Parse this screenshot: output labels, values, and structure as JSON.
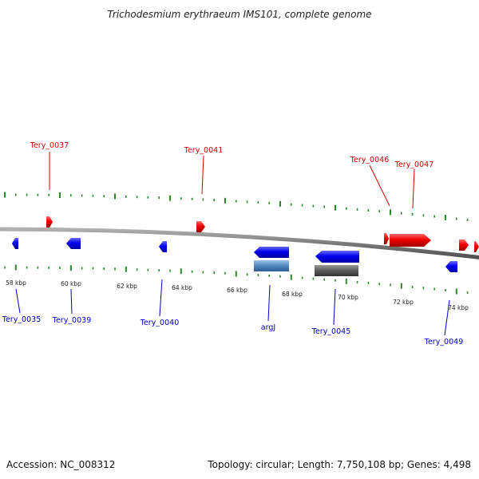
{
  "title": "Trichodesmium erythraeum IMS101, complete genome",
  "footer": {
    "accession": "Accession: NC_008312",
    "summary": "Topology: circular; Length: 7,750,108 bp; Genes: 4,498"
  },
  "colors": {
    "forward_gene": "#e60000",
    "reverse_gene": "#0000ee",
    "top_label": "#d00000",
    "bottom_label": "#0000c0",
    "tick": "#2a8a2a",
    "backbone": "#7a7a7a",
    "rna_gene": "#5a8fc8",
    "pseudo_gene": "#5a5a5a"
  },
  "scale": {
    "tick_labels": [
      "58 kbp",
      "60 kbp",
      "62 kbp",
      "64 kbp",
      "66 kbp",
      "68 kbp",
      "70 kbp",
      "72 kbp",
      "74 kbp"
    ]
  },
  "labels": {
    "top": [
      "Tery_0037",
      "Tery_0041",
      "Tery_0046",
      "Tery_0047"
    ],
    "bottom": [
      "Tery_0035",
      "Tery_0039",
      "Tery_0040",
      "argJ",
      "Tery_0045",
      "Tery_0049"
    ]
  }
}
